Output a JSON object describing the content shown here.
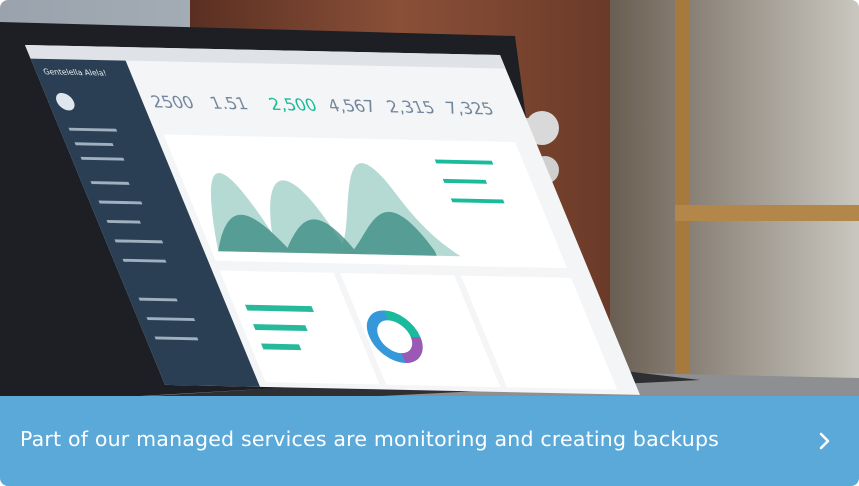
{
  "card": {
    "caption": "Part of our managed services are monitoring and creating backups"
  },
  "image": {
    "brand": "Gentelella Alela!",
    "stats": [
      "2500",
      "1.51",
      "2,500",
      "4,567",
      "2,315",
      "7,325"
    ]
  }
}
